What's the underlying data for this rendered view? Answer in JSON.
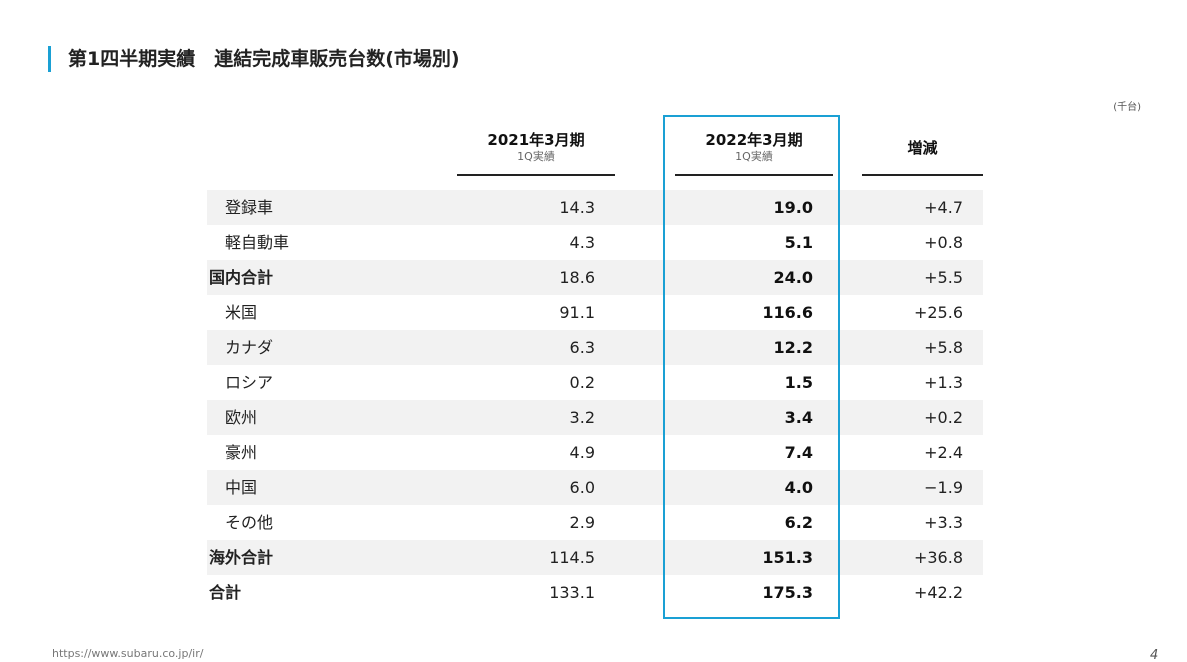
{
  "title": "第1四半期実績　連結完成車販売台数(市場別)",
  "unit": "(千台)",
  "columns": [
    {
      "title": "2021年3月期",
      "subtitle": "1Q実績"
    },
    {
      "title": "2022年3月期",
      "subtitle": "1Q実績"
    },
    {
      "title": "増減",
      "subtitle": ""
    }
  ],
  "rows": [
    {
      "label": "登録車",
      "v2021": "14.3",
      "v2022": "19.0",
      "diff": "+4.7"
    },
    {
      "label": "軽自動車",
      "v2021": "4.3",
      "v2022": "5.1",
      "diff": "+0.8"
    },
    {
      "label": "国内合計",
      "v2021": "18.6",
      "v2022": "24.0",
      "diff": "+5.5"
    },
    {
      "label": "米国",
      "v2021": "91.1",
      "v2022": "116.6",
      "diff": "+25.6"
    },
    {
      "label": "カナダ",
      "v2021": "6.3",
      "v2022": "12.2",
      "diff": "+5.8"
    },
    {
      "label": "ロシア",
      "v2021": "0.2",
      "v2022": "1.5",
      "diff": "+1.3"
    },
    {
      "label": "欧州",
      "v2021": "3.2",
      "v2022": "3.4",
      "diff": "+0.2"
    },
    {
      "label": "豪州",
      "v2021": "4.9",
      "v2022": "7.4",
      "diff": "+2.4"
    },
    {
      "label": "中国",
      "v2021": "6.0",
      "v2022": "4.0",
      "diff": "−1.9"
    },
    {
      "label": "その他",
      "v2021": "2.9",
      "v2022": "6.2",
      "diff": "+3.3"
    },
    {
      "label": "海外合計",
      "v2021": "114.5",
      "v2022": "151.3",
      "diff": "+36.8"
    },
    {
      "label": "合計",
      "v2021": "133.1",
      "v2022": "175.3",
      "diff": "+42.2"
    }
  ],
  "footer": {
    "url": "https://www.subaru.co.jp/ir/",
    "page": "4"
  },
  "colors": {
    "accent": "#1aa0d4",
    "row_shade": "#f2f2f2"
  }
}
